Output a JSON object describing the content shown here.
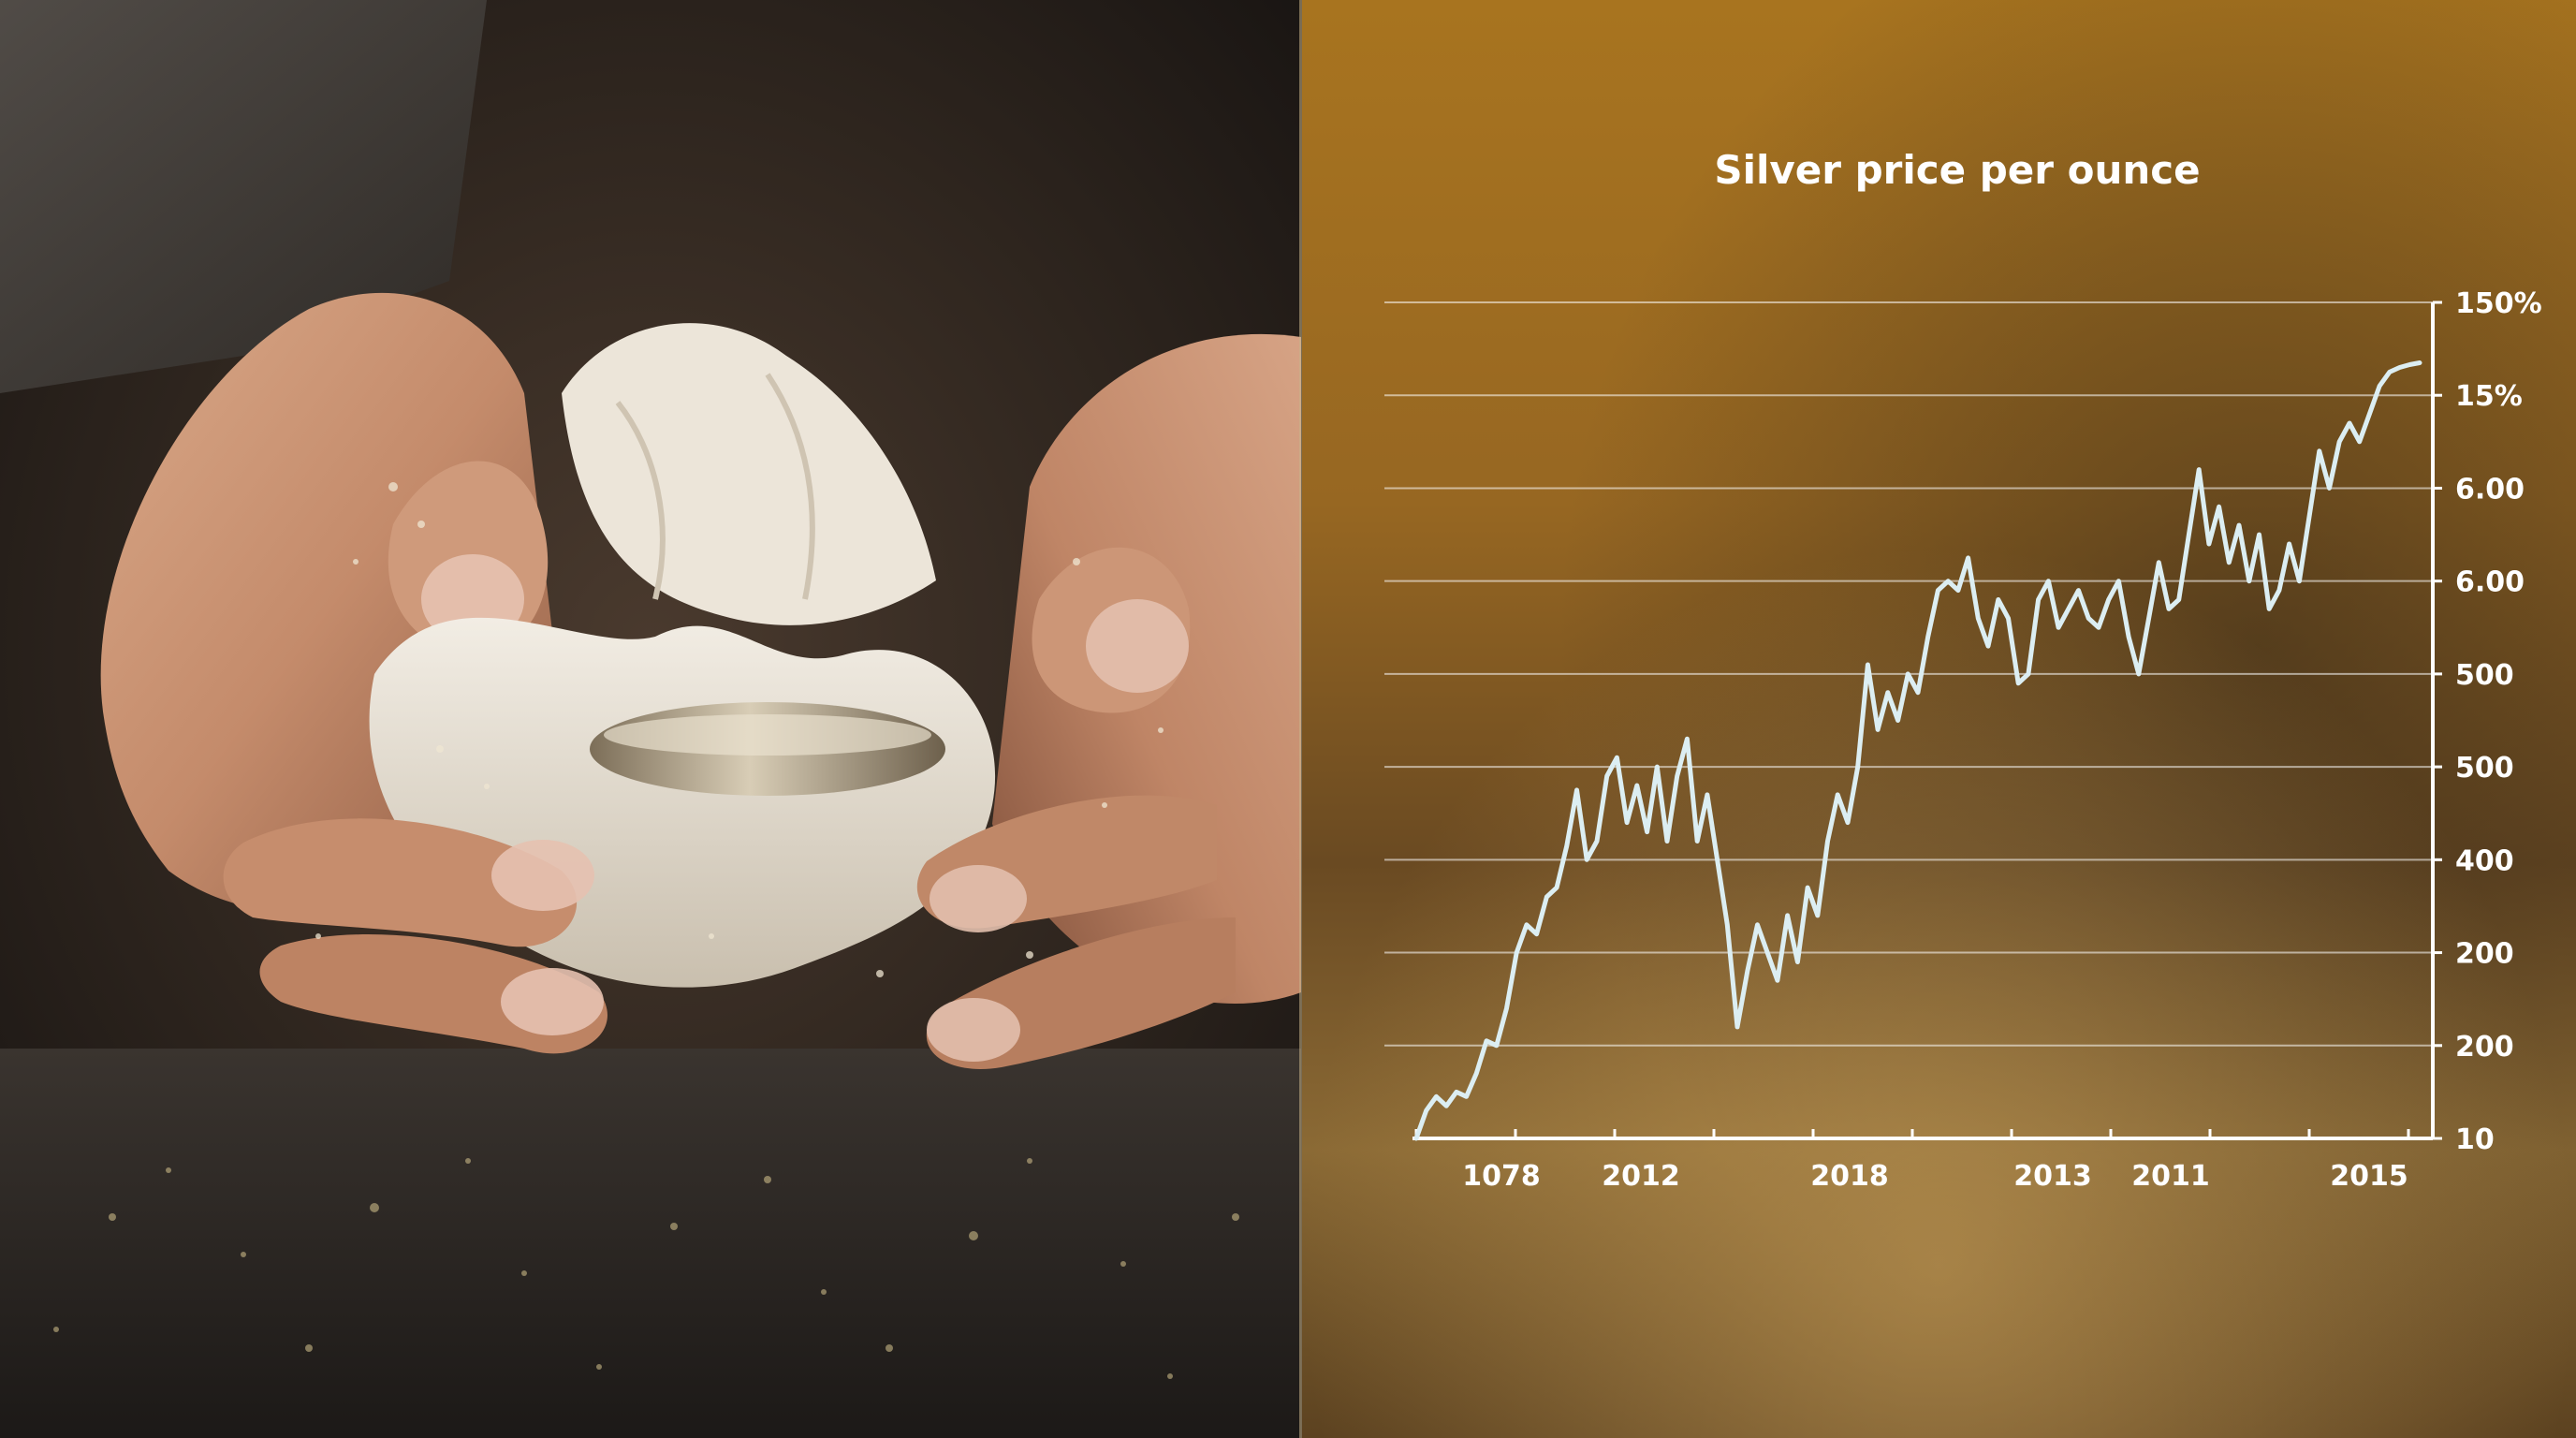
{
  "chart_data": {
    "type": "line",
    "title": "Silver price per ounce",
    "xlabel": "",
    "ylabel": "",
    "x_tick_labels": [
      "1078",
      "2012",
      "2018",
      "2013",
      "2011",
      "2015"
    ],
    "y_tick_labels": [
      "10",
      "200",
      "200",
      "400",
      "500",
      "500",
      "6.00",
      "6.00",
      "15%",
      "150%"
    ],
    "ylim": [
      0,
      9
    ],
    "grid": true,
    "legend": "none",
    "series": [
      {
        "color": "#dceef2",
        "x": [
          0,
          1,
          2,
          3,
          4,
          5,
          6,
          7,
          8,
          9,
          10,
          11,
          12,
          13,
          14,
          15,
          16,
          17,
          18,
          19,
          20,
          21,
          22,
          23,
          24,
          25,
          26,
          27,
          28,
          29,
          30,
          31,
          32,
          33,
          34,
          35,
          36,
          37,
          38,
          39,
          40,
          41,
          42,
          43,
          44,
          45,
          46,
          47,
          48,
          49,
          50,
          51,
          52,
          53,
          54,
          55,
          56,
          57,
          58,
          59,
          60,
          61,
          62,
          63,
          64,
          65,
          66,
          67,
          68,
          69,
          70,
          71,
          72,
          73,
          74,
          75,
          76,
          77,
          78,
          79,
          80,
          81,
          82,
          83,
          84,
          85,
          86,
          87,
          88,
          89,
          90,
          91,
          92,
          93,
          94,
          95,
          96,
          97,
          98,
          99,
          100
        ],
        "values": [
          0.0,
          0.3,
          0.45,
          0.35,
          0.5,
          0.45,
          0.7,
          1.05,
          1.0,
          1.4,
          2.0,
          2.3,
          2.2,
          2.6,
          2.7,
          3.15,
          3.75,
          3.0,
          3.2,
          3.9,
          4.1,
          3.4,
          3.8,
          3.3,
          4.0,
          3.2,
          3.9,
          4.3,
          3.2,
          3.7,
          3.0,
          2.3,
          1.2,
          1.8,
          2.3,
          2.0,
          1.7,
          2.4,
          1.9,
          2.7,
          2.4,
          3.2,
          3.7,
          3.4,
          4.0,
          5.1,
          4.4,
          4.8,
          4.5,
          5.0,
          4.8,
          5.4,
          5.9,
          6.0,
          5.9,
          6.25,
          5.6,
          5.3,
          5.8,
          5.6,
          4.9,
          5.0,
          5.8,
          6.0,
          5.5,
          5.7,
          5.9,
          5.6,
          5.5,
          5.8,
          6.0,
          5.4,
          5.0,
          5.6,
          6.2,
          5.7,
          5.8,
          6.5,
          7.2,
          6.4,
          6.8,
          6.2,
          6.6,
          6.0,
          6.5,
          5.7,
          5.9,
          6.4,
          6.0,
          6.7,
          7.4,
          7.0,
          7.5,
          7.7,
          7.5,
          7.8,
          8.1,
          8.25,
          8.3,
          8.33,
          8.35
        ]
      }
    ]
  }
}
